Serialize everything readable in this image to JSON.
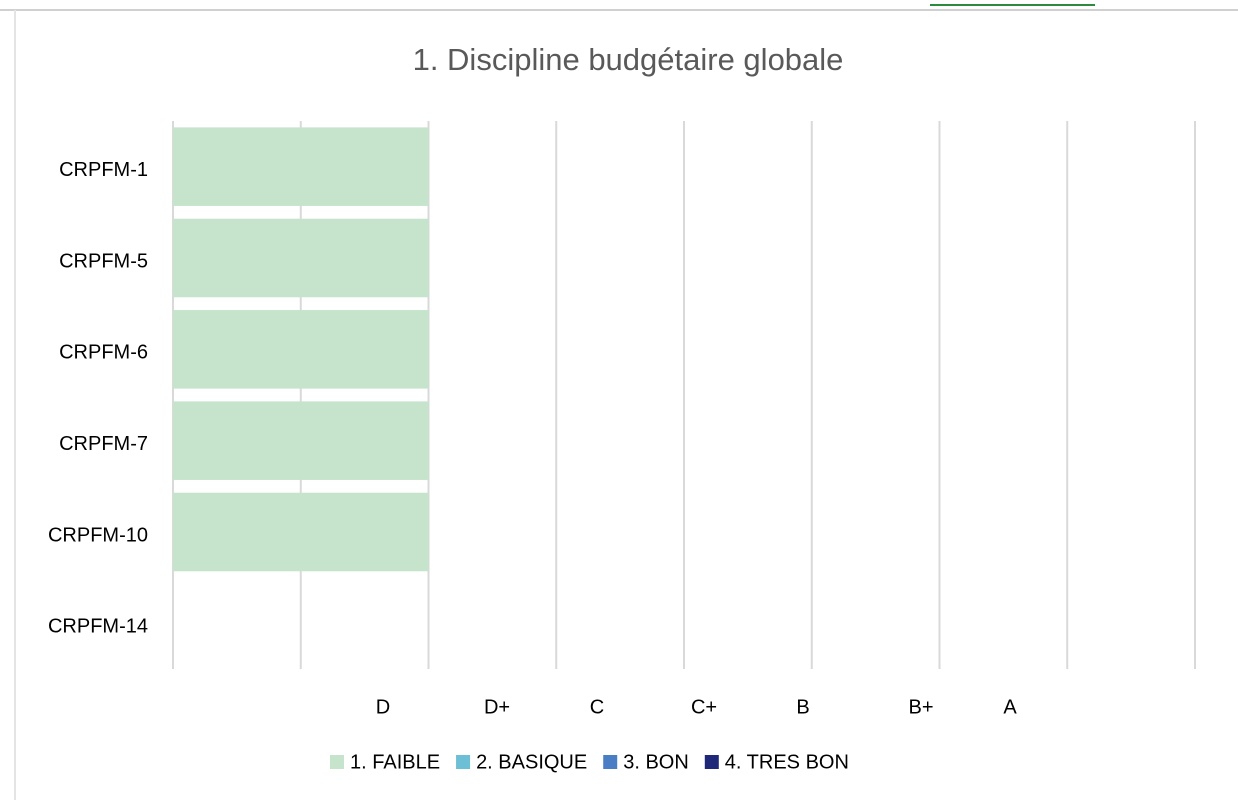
{
  "chart_data": {
    "type": "bar",
    "orientation": "horizontal",
    "stacked": true,
    "title": "1. Discipline budgétaire globale",
    "categories": [
      "CRPFM-1",
      "CRPFM-5",
      "CRPFM-6",
      "CRPFM-7",
      "CRPFM-10",
      "CRPFM-14"
    ],
    "series": [
      {
        "name": "1. FAIBLE",
        "color": "#c5e4cb",
        "values": [
          2,
          2,
          2,
          2,
          2,
          0
        ]
      },
      {
        "name": "2. BASIQUE",
        "color": "#6cbfd5",
        "values": [
          0,
          0,
          0,
          0,
          0,
          0
        ]
      },
      {
        "name": "3. BON",
        "color": "#4a7ec4",
        "values": [
          0,
          0,
          0,
          0,
          0,
          0
        ]
      },
      {
        "name": "4. TRES BON",
        "color": "#1f2878",
        "values": [
          0,
          0,
          0,
          0,
          0,
          0
        ]
      }
    ],
    "xlim": [
      0,
      8
    ],
    "xticks": [
      0,
      1,
      2,
      3,
      4,
      5,
      6,
      7,
      8
    ],
    "grid": true,
    "annotations": [
      "D",
      "D+",
      "C",
      "C+",
      "B",
      "B+",
      "A"
    ]
  }
}
